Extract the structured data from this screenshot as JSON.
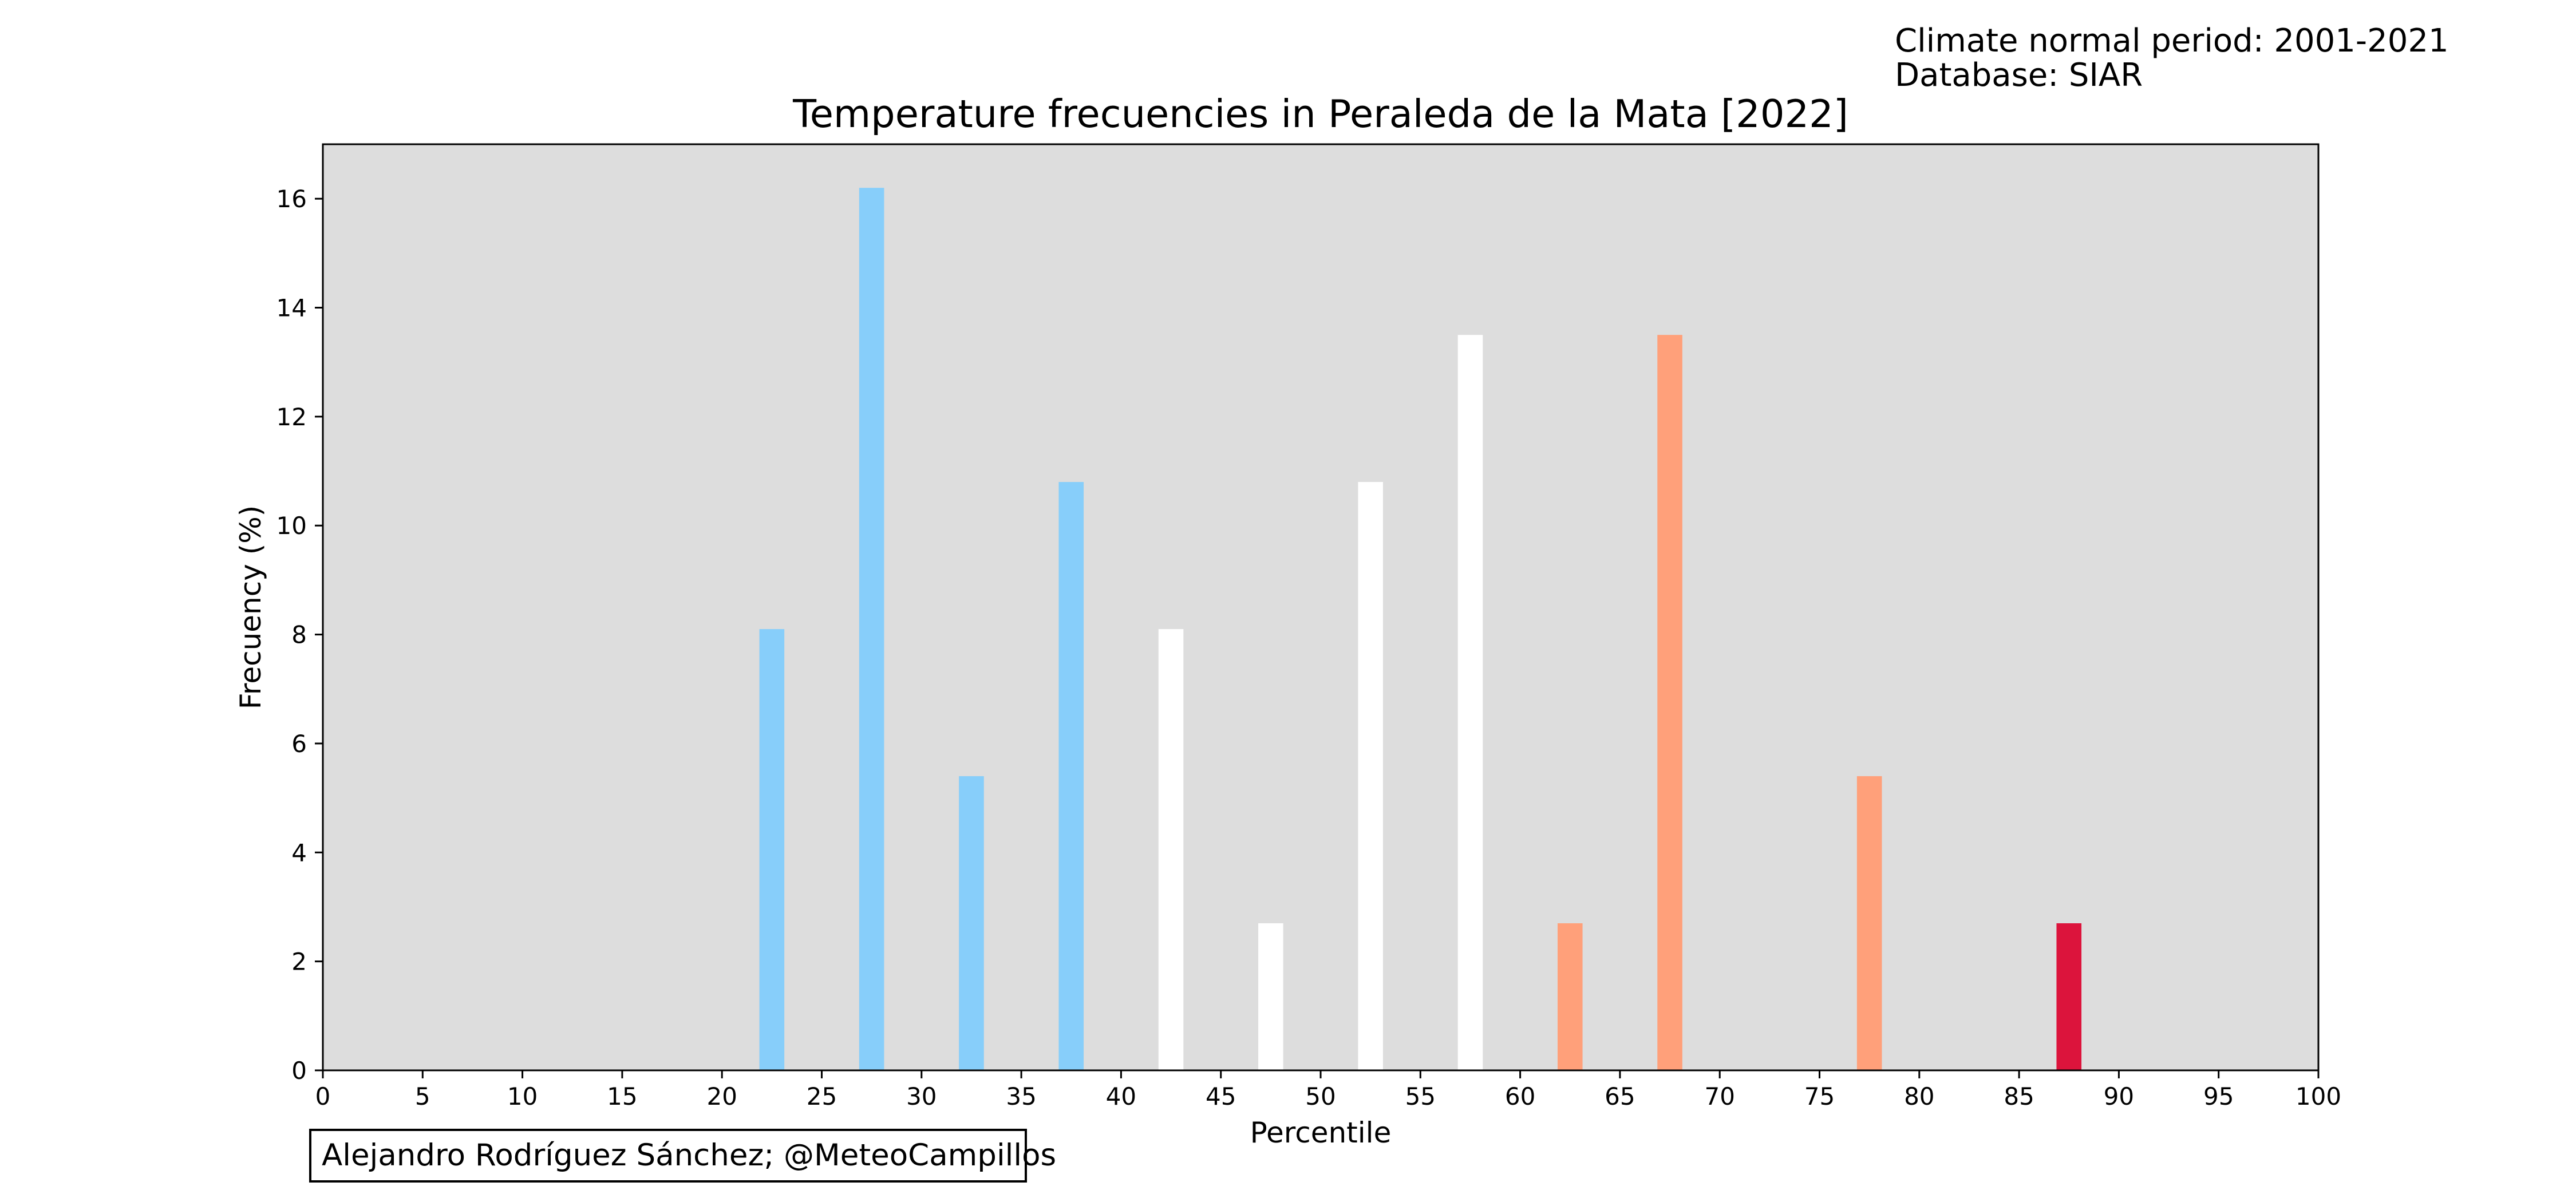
{
  "header": {
    "info_line_1": "Climate normal period: 2001-2021",
    "info_line_2": "Database: SIAR"
  },
  "credit": {
    "text": "Alejandro Rodríguez Sánchez; @MeteoCampillos"
  },
  "colors": {
    "plot_background": "#dddddd",
    "cold": "#87cefa",
    "neutral": "#ffffff",
    "warm": "#ffa07a",
    "hot": "#dc143c"
  },
  "chart_data": {
    "type": "bar",
    "title": "Temperature frecuencies in Peraleda de la Mata [2022]",
    "xlabel": "Percentile",
    "ylabel": "Frecuency (%)",
    "xlim": [
      0,
      100
    ],
    "ylim": [
      0,
      17
    ],
    "grid": false,
    "legend": "none",
    "x_ticks": [
      0,
      5,
      10,
      15,
      20,
      25,
      30,
      35,
      40,
      45,
      50,
      55,
      60,
      65,
      70,
      75,
      80,
      85,
      90,
      95,
      100
    ],
    "y_ticks": [
      0,
      2,
      4,
      6,
      8,
      10,
      12,
      14,
      16
    ],
    "bar_width": 1.25,
    "bars": [
      {
        "x": 22.5,
        "value": 8.1,
        "color": "#87cefa"
      },
      {
        "x": 27.5,
        "value": 16.2,
        "color": "#87cefa"
      },
      {
        "x": 32.5,
        "value": 5.4,
        "color": "#87cefa"
      },
      {
        "x": 37.5,
        "value": 10.8,
        "color": "#87cefa"
      },
      {
        "x": 42.5,
        "value": 8.1,
        "color": "#ffffff"
      },
      {
        "x": 47.5,
        "value": 2.7,
        "color": "#ffffff"
      },
      {
        "x": 52.5,
        "value": 10.8,
        "color": "#ffffff"
      },
      {
        "x": 57.5,
        "value": 13.5,
        "color": "#ffffff"
      },
      {
        "x": 62.5,
        "value": 2.7,
        "color": "#ffa07a"
      },
      {
        "x": 67.5,
        "value": 13.5,
        "color": "#ffa07a"
      },
      {
        "x": 77.5,
        "value": 5.4,
        "color": "#ffa07a"
      },
      {
        "x": 87.5,
        "value": 2.7,
        "color": "#dc143c"
      }
    ]
  }
}
